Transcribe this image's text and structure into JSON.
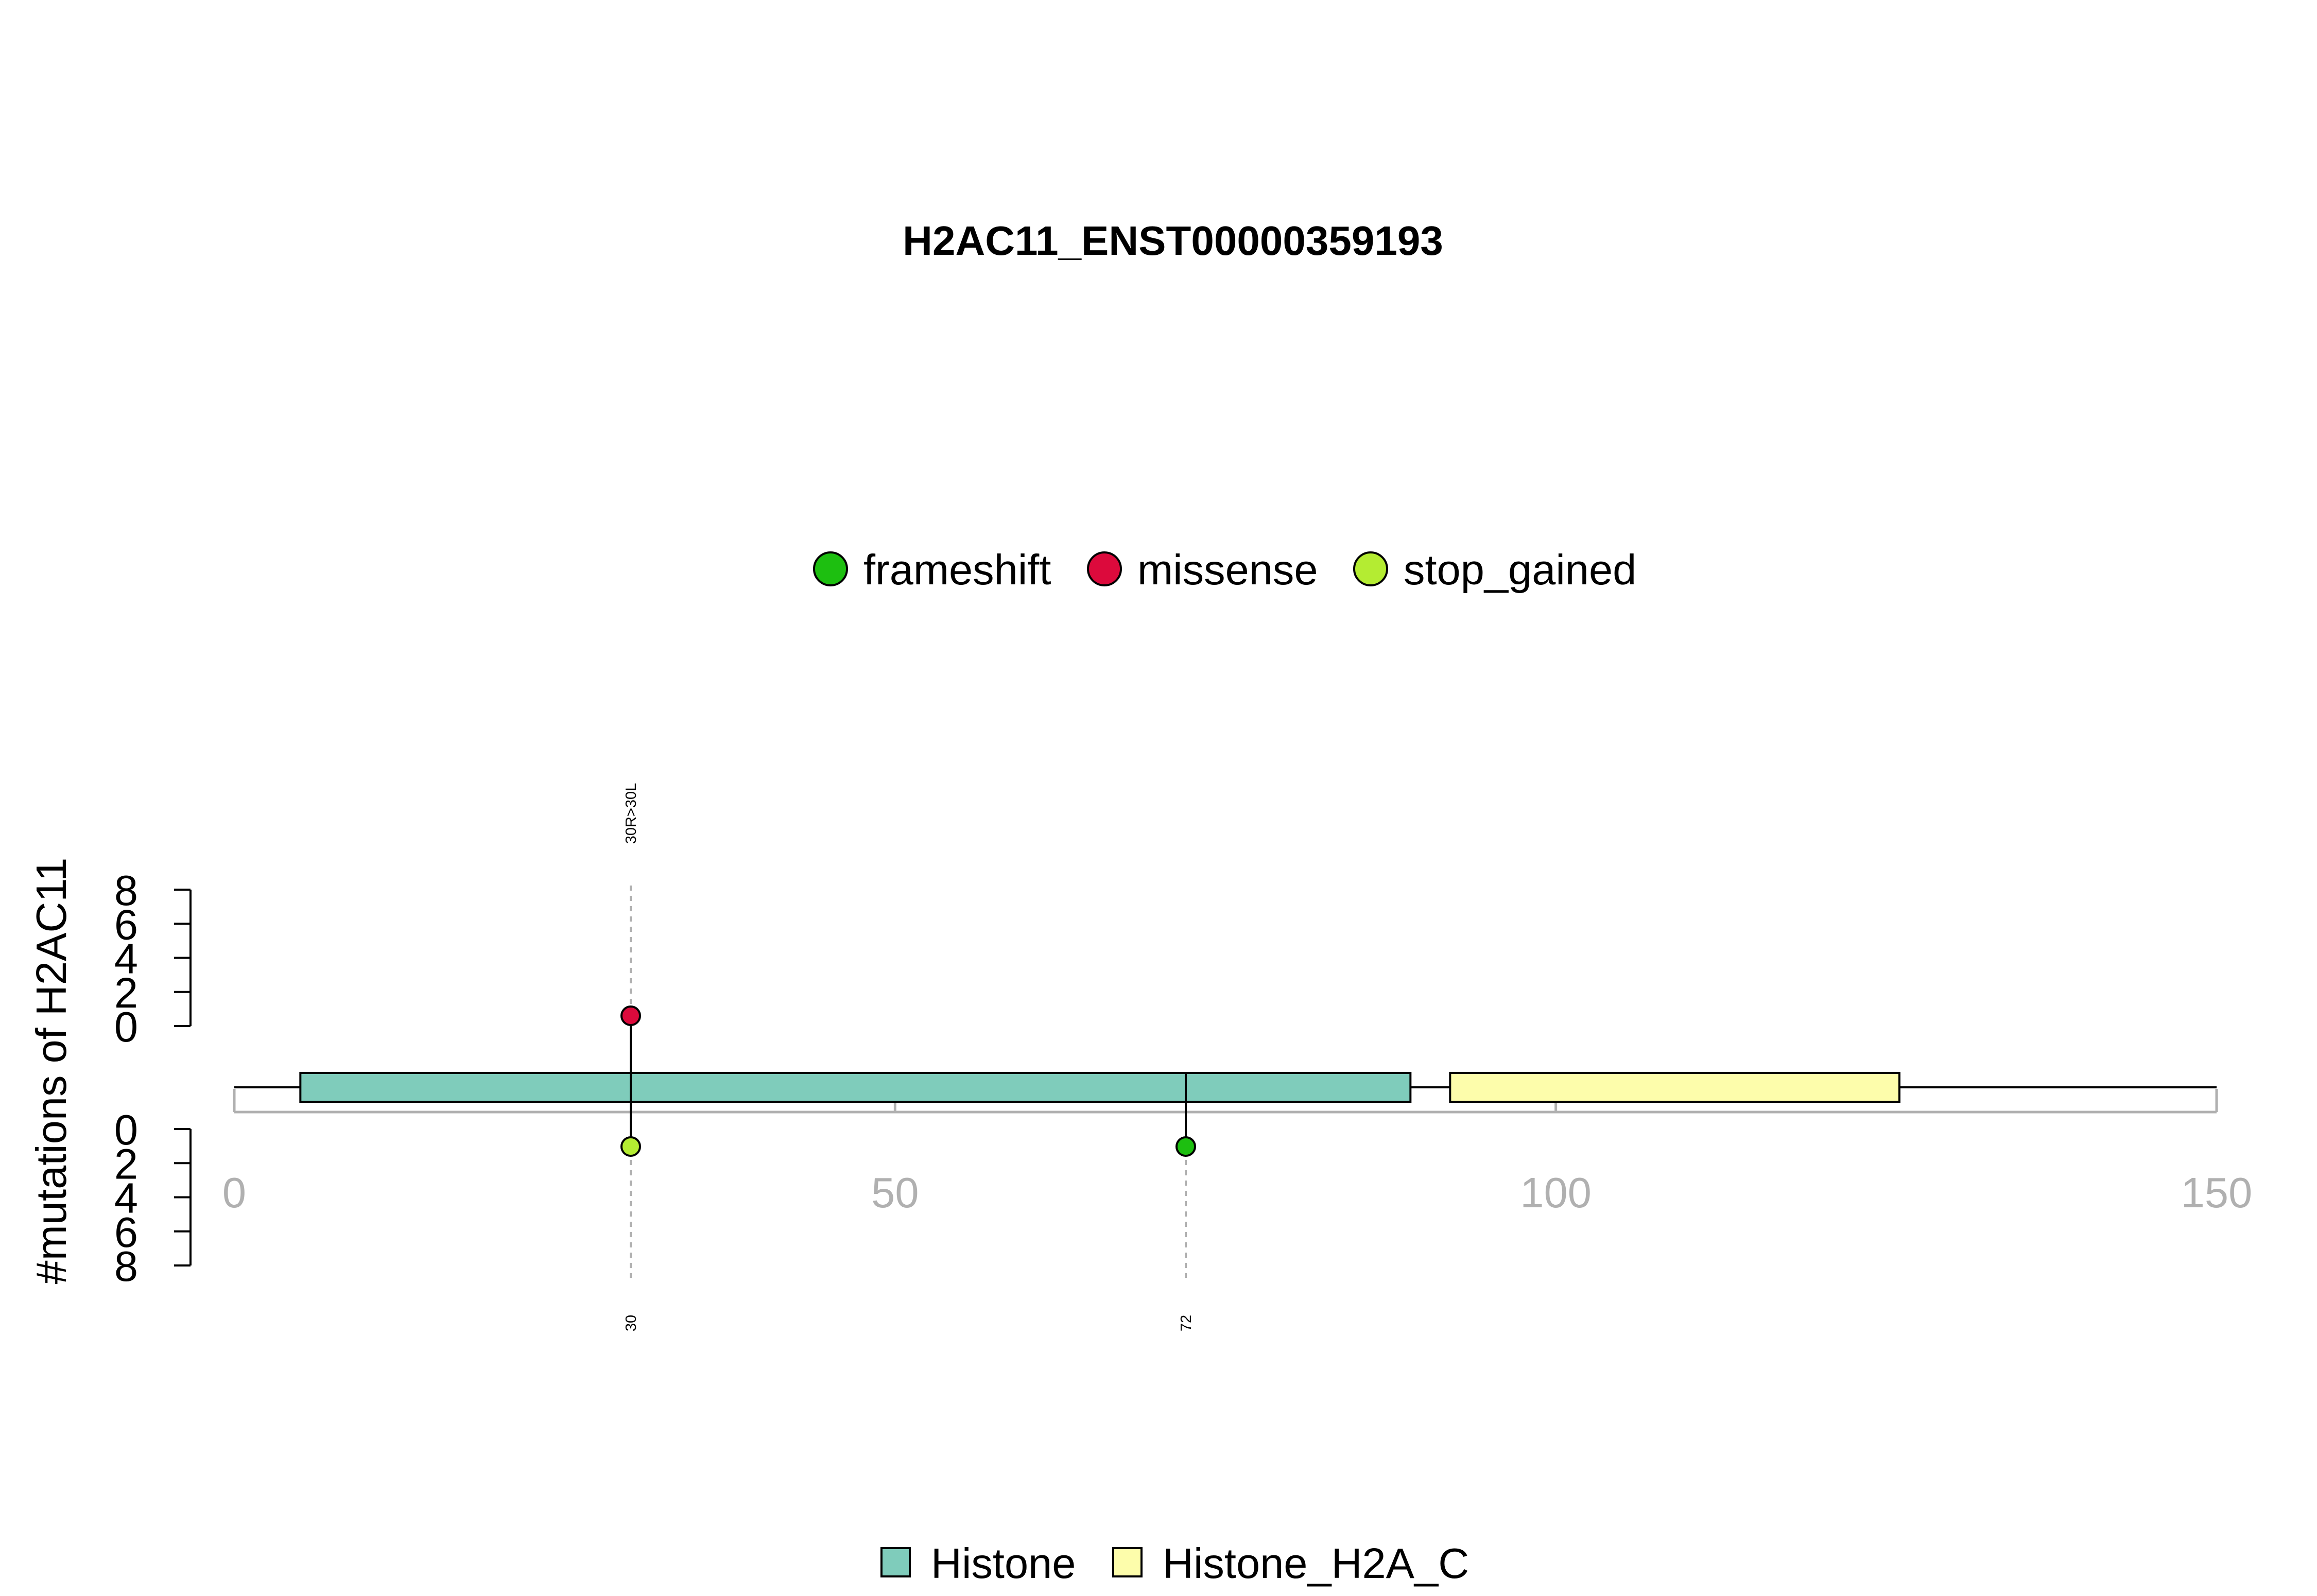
{
  "chart_data": {
    "type": "lollipop",
    "title": "H2AC11_ENST00000359193",
    "ylabel": "#mutations of H2AC11",
    "xlim": [
      0,
      150
    ],
    "x_ticks": [
      "0",
      "50",
      "100",
      "150"
    ],
    "y_ticks_upper": [
      "8",
      "6",
      "4",
      "2",
      "0"
    ],
    "y_ticks_lower": [
      "0",
      "2",
      "4",
      "6",
      "8"
    ],
    "ylim": [
      0,
      8
    ],
    "mutation_legend": [
      {
        "name": "frameshift",
        "color": "#1dbf10"
      },
      {
        "name": "missense",
        "color": "#dc0a3c"
      },
      {
        "name": "stop_gained",
        "color": "#b4ec32"
      }
    ],
    "domain_legend": [
      {
        "name": "Histone",
        "color": "#7fccbb"
      },
      {
        "name": "Histone_H2A_C",
        "color": "#fdfdab"
      }
    ],
    "domains": [
      {
        "name": "Histone",
        "start": 5,
        "end": 89,
        "color": "#7fccbb"
      },
      {
        "name": "Histone_H2A_C",
        "start": 92,
        "end": 126,
        "color": "#fdfdab"
      }
    ],
    "mutations_upper": [
      {
        "position": 30,
        "count": 1,
        "type": "missense",
        "color": "#dc0a3c",
        "label": "30R>30L"
      }
    ],
    "mutations_lower": [
      {
        "position": 30,
        "count": 1,
        "type": "stop_gained",
        "color": "#b4ec32",
        "label": "30"
      },
      {
        "position": 72,
        "count": 1,
        "type": "frameshift",
        "color": "#1dbf10",
        "label": "72"
      }
    ]
  }
}
